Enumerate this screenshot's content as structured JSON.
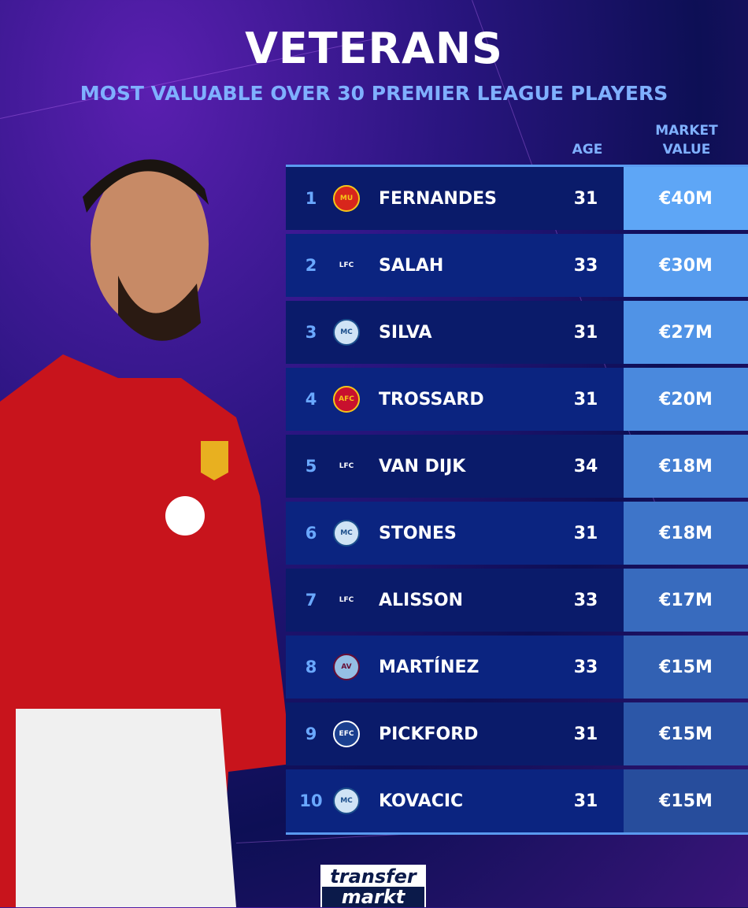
{
  "header": {
    "title": "VETERANS",
    "subtitle": "MOST VALUABLE OVER 30 PREMIER LEAGUE PLAYERS"
  },
  "columns": {
    "age": "AGE",
    "market_value_line1": "MARKET",
    "market_value_line2": "VALUE"
  },
  "rows": [
    {
      "rank": "1",
      "club_icon": "manchester-united-crest",
      "name": "FERNANDES",
      "age": "31",
      "value": "€40M",
      "color": "#5ea6f6"
    },
    {
      "rank": "2",
      "club_icon": "liverpool-crest",
      "name": "SALAH",
      "age": "33",
      "value": "€30M",
      "color": "#579cee"
    },
    {
      "rank": "3",
      "club_icon": "manchester-city-crest",
      "name": "SILVA",
      "age": "31",
      "value": "€27M",
      "color": "#5093e6"
    },
    {
      "rank": "4",
      "club_icon": "arsenal-crest",
      "name": "TROSSARD",
      "age": "31",
      "value": "€20M",
      "color": "#4a89dd"
    },
    {
      "rank": "5",
      "club_icon": "liverpool-crest",
      "name": "VAN DIJK",
      "age": "34",
      "value": "€18M",
      "color": "#447fd3"
    },
    {
      "rank": "6",
      "club_icon": "manchester-city-crest",
      "name": "STONES",
      "age": "31",
      "value": "€18M",
      "color": "#3e75c9"
    },
    {
      "rank": "7",
      "club_icon": "liverpool-crest",
      "name": "ALISSON",
      "age": "33",
      "value": "€17M",
      "color": "#386bbe"
    },
    {
      "rank": "8",
      "club_icon": "aston-villa-crest",
      "name": "MARTÍNEZ",
      "age": "33",
      "value": "€15M",
      "color": "#3261b3"
    },
    {
      "rank": "9",
      "club_icon": "everton-crest",
      "name": "PICKFORD",
      "age": "31",
      "value": "€15M",
      "color": "#2c57a8"
    },
    {
      "rank": "10",
      "club_icon": "manchester-city-crest",
      "name": "KOVACIC",
      "age": "31",
      "value": "€15M",
      "color": "#274d9c"
    }
  ],
  "crest_styles": {
    "manchester-united-crest": {
      "bg": "#d8261c",
      "fg": "#f5c518",
      "glyph": "MU"
    },
    "liverpool-crest": {
      "bg": "transparent",
      "fg": "#ffffff",
      "glyph": "LFC"
    },
    "manchester-city-crest": {
      "bg": "#cfe3f5",
      "fg": "#1c4f8c",
      "glyph": "MC"
    },
    "arsenal-crest": {
      "bg": "#c8102e",
      "fg": "#f5c518",
      "glyph": "AFC"
    },
    "aston-villa-crest": {
      "bg": "#95bfe5",
      "fg": "#670e36",
      "glyph": "AV"
    },
    "everton-crest": {
      "bg": "#1b3f8f",
      "fg": "#ffffff",
      "glyph": "EFC"
    }
  },
  "logo": {
    "line1": "transfer",
    "line2": "markt"
  }
}
